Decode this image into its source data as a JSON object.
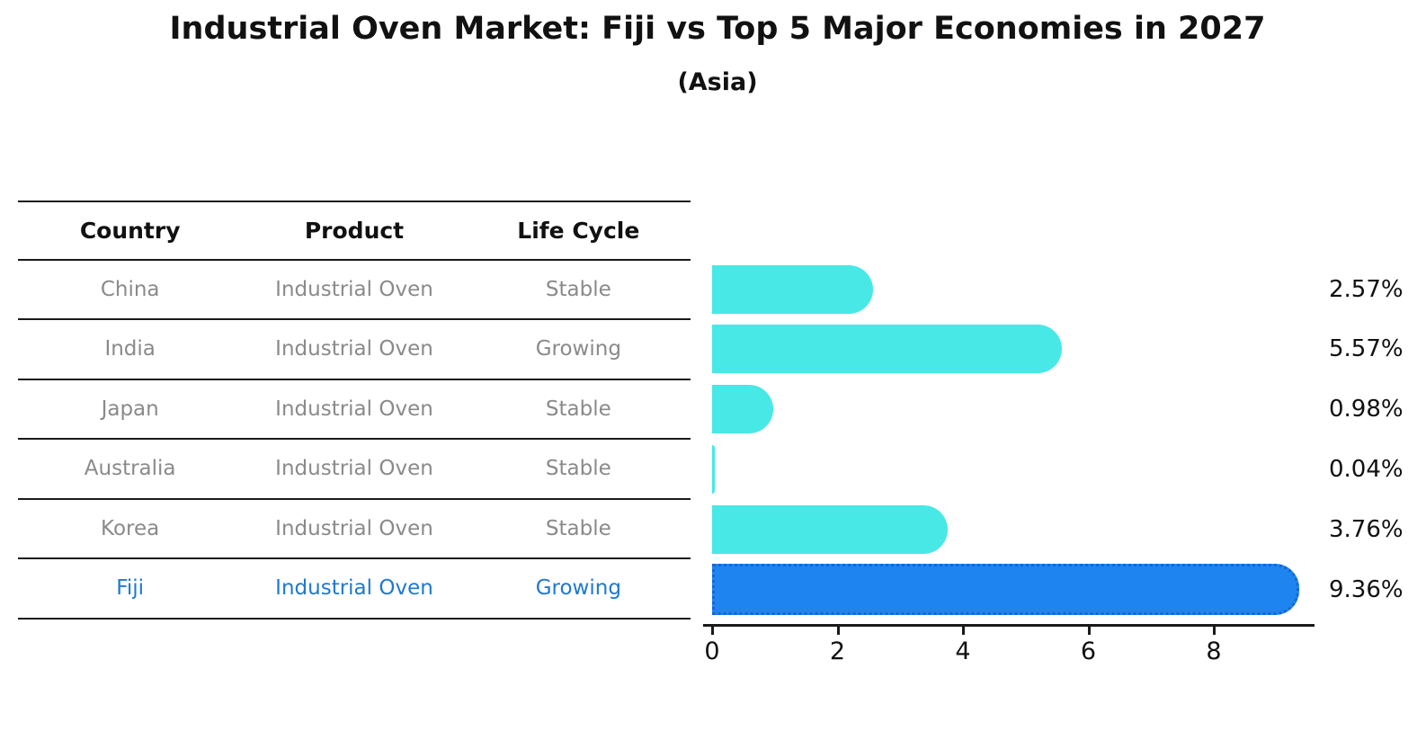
{
  "title": "Industrial Oven Market: Fiji vs Top 5 Major Economies in 2027",
  "subtitle": "(Asia)",
  "table": {
    "headers": [
      "Country",
      "Product",
      "Life Cycle"
    ],
    "rows": [
      {
        "country": "China",
        "product": "Industrial Oven",
        "life_cycle": "Stable",
        "highlight": false
      },
      {
        "country": "India",
        "product": "Industrial Oven",
        "life_cycle": "Growing",
        "highlight": false
      },
      {
        "country": "Japan",
        "product": "Industrial Oven",
        "life_cycle": "Stable",
        "highlight": false
      },
      {
        "country": "Australia",
        "product": "Industrial Oven",
        "life_cycle": "Stable",
        "highlight": false
      },
      {
        "country": "Korea",
        "product": "Industrial Oven",
        "life_cycle": "Stable",
        "highlight": false
      },
      {
        "country": "Fiji",
        "product": "Industrial Oven",
        "life_cycle": "Growing",
        "highlight": true
      }
    ]
  },
  "chart_data": {
    "type": "bar",
    "orientation": "horizontal",
    "title": "Industrial Oven Market: Fiji vs Top 5 Major Economies in 2027",
    "subtitle": "(Asia)",
    "categories": [
      "China",
      "India",
      "Japan",
      "Australia",
      "Korea",
      "Fiji"
    ],
    "values": [
      2.57,
      5.57,
      0.98,
      0.04,
      3.76,
      9.36
    ],
    "value_labels": [
      "2.57%",
      "5.57%",
      "0.98%",
      "0.04%",
      "3.76%",
      "9.36%"
    ],
    "highlight_category": "Fiji",
    "highlight_index": 5,
    "x_ticks": [
      "0",
      "2",
      "4",
      "6",
      "8"
    ],
    "x_tick_values": [
      0,
      2,
      4,
      6,
      8
    ],
    "xlim": [
      0,
      9.6
    ],
    "grid": false,
    "legend": false
  },
  "colors": {
    "bar": "#48E8E6",
    "highlight_bar": "#1E85F0",
    "highlight_border": "#1565D8",
    "highlight_text": "#1F78D1",
    "row_text": "#8A8A8A",
    "header_text": "#111111",
    "line": "#1A1A1A"
  }
}
